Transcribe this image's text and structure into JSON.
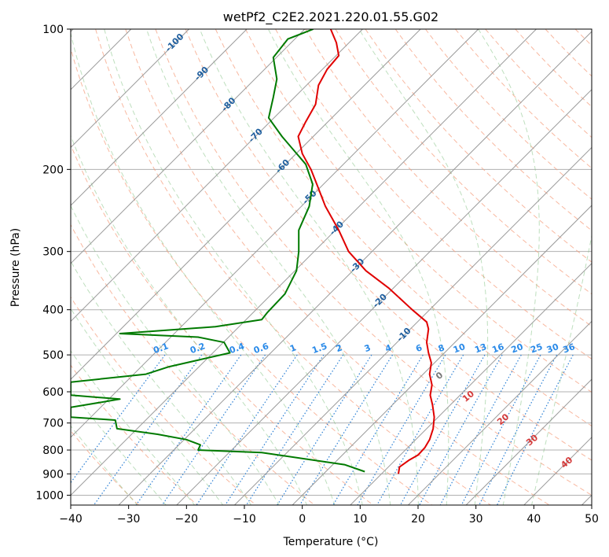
{
  "chart_data": {
    "type": "line",
    "title": "wetPf2_C2E2.2021.220.01.55.G02",
    "xlabel": "Temperature (°C)",
    "ylabel": "Pressure (hPa)",
    "xlim": [
      -40,
      50
    ],
    "ylim": [
      1050,
      100
    ],
    "y_scale": "log",
    "x_ticks": [
      -40,
      -30,
      -20,
      -10,
      0,
      10,
      20,
      30,
      40,
      50
    ],
    "y_ticks": [
      100,
      200,
      300,
      400,
      500,
      600,
      700,
      800,
      900,
      1000
    ],
    "grid": true,
    "series": [
      {
        "color": "#e00000",
        "points": [
          [
            16.6,
            900
          ],
          [
            16.8,
            870
          ],
          [
            18.5,
            840
          ],
          [
            20,
            820
          ],
          [
            21.2,
            790
          ],
          [
            22,
            760
          ],
          [
            22.6,
            720
          ],
          [
            22.8,
            680
          ],
          [
            22.5,
            640
          ],
          [
            22.1,
            610
          ],
          [
            22.4,
            580
          ],
          [
            22,
            550
          ],
          [
            22.3,
            520
          ],
          [
            21.8,
            495
          ],
          [
            21.5,
            470
          ],
          [
            21.8,
            440
          ],
          [
            21.5,
            425
          ],
          [
            19,
            400
          ],
          [
            15,
            360
          ],
          [
            11,
            330
          ],
          [
            8,
            300
          ],
          [
            6.3,
            270
          ],
          [
            4,
            240
          ],
          [
            2.5,
            215
          ],
          [
            1.5,
            200
          ],
          [
            0,
            185
          ],
          [
            -0.7,
            170
          ],
          [
            0.6,
            158
          ],
          [
            2.3,
            145
          ],
          [
            2.8,
            132
          ],
          [
            4.3,
            122
          ],
          [
            6.3,
            114
          ],
          [
            5.9,
            107
          ],
          [
            4.9,
            100
          ]
        ]
      },
      {
        "color": "#007a00",
        "points": [
          [
            10.8,
            890
          ],
          [
            7.3,
            860
          ],
          [
            -7,
            810
          ],
          [
            -18,
            800
          ],
          [
            -17.6,
            780
          ],
          [
            -20,
            760
          ],
          [
            -25,
            740
          ],
          [
            -32,
            720
          ],
          [
            -32.3,
            690
          ],
          [
            -40,
            680
          ],
          [
            -40,
            648
          ],
          [
            -31.5,
            622
          ],
          [
            -40,
            610
          ],
          [
            -40,
            572
          ],
          [
            -27,
            550
          ],
          [
            -23,
            530
          ],
          [
            -12.5,
            495
          ],
          [
            -13.5,
            470
          ],
          [
            -18,
            458
          ],
          [
            -31.5,
            450
          ],
          [
            -15,
            435
          ],
          [
            -7,
            420
          ],
          [
            -6,
            405
          ],
          [
            -3,
            370
          ],
          [
            -1,
            330
          ],
          [
            -0.6,
            300
          ],
          [
            -0.6,
            270
          ],
          [
            1.2,
            240
          ],
          [
            1.8,
            215
          ],
          [
            0.6,
            195
          ],
          [
            -3.5,
            170
          ],
          [
            -5.8,
            155
          ],
          [
            -5,
            140
          ],
          [
            -4.4,
            128
          ],
          [
            -5,
            115
          ],
          [
            -2.5,
            105
          ],
          [
            1.9,
            100
          ]
        ]
      }
    ],
    "isotherm_labels": [
      "-100",
      "-90",
      "-80",
      "-70",
      "-60",
      "-50",
      "-40",
      "-30",
      "-20",
      "-10"
    ],
    "mixing_ratio_labels": [
      "0.1",
      "0.2",
      "0.4",
      "0.6",
      "1",
      "1.5",
      "2",
      "3",
      "4",
      "6",
      "8",
      "10",
      "13",
      "16",
      "20",
      "25",
      "30",
      "36"
    ],
    "theta_labels": [
      "0",
      "10",
      "20",
      "30",
      "40"
    ]
  }
}
